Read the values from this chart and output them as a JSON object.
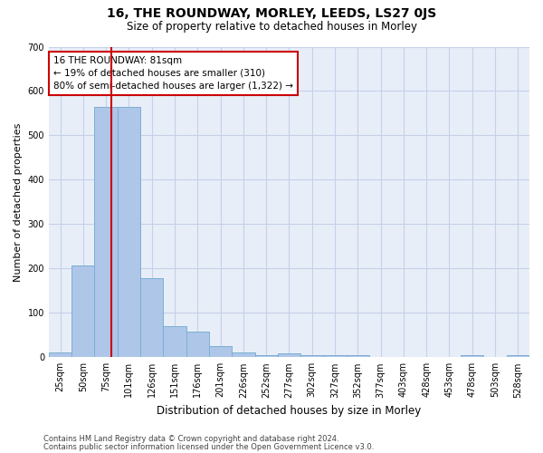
{
  "title": "16, THE ROUNDWAY, MORLEY, LEEDS, LS27 0JS",
  "subtitle": "Size of property relative to detached houses in Morley",
  "xlabel": "Distribution of detached houses by size in Morley",
  "ylabel": "Number of detached properties",
  "bar_color": "#aec6e8",
  "bar_edge_color": "#7bafd4",
  "background_color": "#e8eef8",
  "categories": [
    "25sqm",
    "50sqm",
    "75sqm",
    "101sqm",
    "126sqm",
    "151sqm",
    "176sqm",
    "201sqm",
    "226sqm",
    "252sqm",
    "277sqm",
    "302sqm",
    "327sqm",
    "352sqm",
    "377sqm",
    "403sqm",
    "428sqm",
    "453sqm",
    "478sqm",
    "503sqm",
    "528sqm"
  ],
  "values": [
    10,
    207,
    565,
    565,
    178,
    70,
    58,
    25,
    10,
    5,
    8,
    5,
    5,
    5,
    0,
    0,
    0,
    0,
    5,
    0,
    5
  ],
  "ylim": [
    0,
    700
  ],
  "yticks": [
    0,
    100,
    200,
    300,
    400,
    500,
    600,
    700
  ],
  "red_line_x": 2.24,
  "marker_label": "16 THE ROUNDWAY: 81sqm",
  "annotation_line1": "← 19% of detached houses are smaller (310)",
  "annotation_line2": "80% of semi-detached houses are larger (1,322) →",
  "footer_line1": "Contains HM Land Registry data © Crown copyright and database right 2024.",
  "footer_line2": "Contains public sector information licensed under the Open Government Licence v3.0.",
  "red_line_color": "#cc0000",
  "annotation_box_color": "#cc0000",
  "grid_color": "#c5d0e8",
  "title_fontsize": 10,
  "subtitle_fontsize": 8.5,
  "tick_fontsize": 7,
  "ylabel_fontsize": 8,
  "xlabel_fontsize": 8.5
}
